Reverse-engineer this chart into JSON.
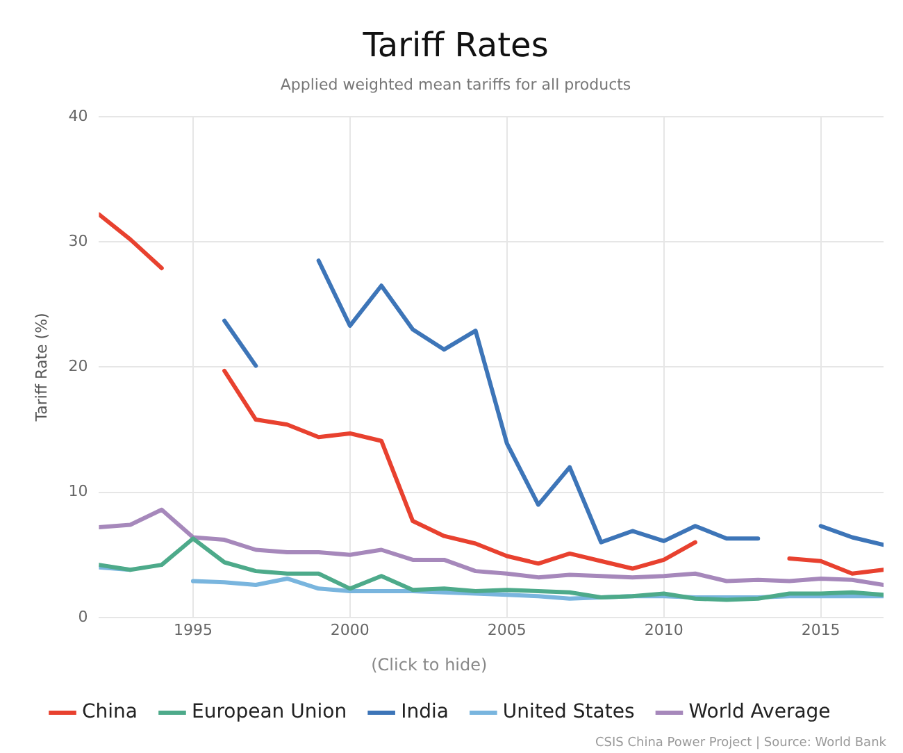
{
  "chart_data": {
    "type": "line",
    "title": "Tariff Rates",
    "subtitle": "Applied weighted mean tariffs for all products",
    "ylabel": "Tariff Rate (%)",
    "legend_title": "(Click to hide)",
    "x": [
      1992,
      1993,
      1994,
      1995,
      1996,
      1997,
      1998,
      1999,
      2000,
      2001,
      2002,
      2003,
      2004,
      2005,
      2006,
      2007,
      2008,
      2009,
      2010,
      2011,
      2012,
      2013,
      2014,
      2015,
      2016,
      2017
    ],
    "series": [
      {
        "name": "China",
        "color": "#e8412f",
        "values": [
          32.2,
          30.2,
          27.9,
          null,
          19.7,
          15.8,
          15.4,
          14.4,
          14.7,
          14.1,
          7.7,
          6.5,
          5.9,
          4.9,
          4.3,
          5.1,
          4.5,
          3.9,
          4.6,
          6.0,
          null,
          null,
          4.7,
          4.5,
          3.5,
          3.8
        ]
      },
      {
        "name": "European Union",
        "color": "#4daa8a",
        "values": [
          4.2,
          3.8,
          4.2,
          6.3,
          4.4,
          3.7,
          3.5,
          3.5,
          2.3,
          3.3,
          2.2,
          2.3,
          2.1,
          2.2,
          2.1,
          2.0,
          1.6,
          1.7,
          1.9,
          1.5,
          1.4,
          1.5,
          1.9,
          1.9,
          2.0,
          1.8
        ]
      },
      {
        "name": "India",
        "color": "#3d75b8",
        "values": [
          null,
          null,
          null,
          null,
          23.7,
          20.1,
          null,
          28.5,
          23.3,
          26.5,
          23.0,
          21.4,
          22.9,
          13.9,
          9.0,
          12.0,
          6.0,
          6.9,
          6.1,
          7.3,
          6.3,
          6.3,
          null,
          7.3,
          6.4,
          5.8
        ]
      },
      {
        "name": "United States",
        "color": "#79b5de",
        "values": [
          4.0,
          3.8,
          null,
          2.9,
          2.8,
          2.6,
          3.1,
          2.3,
          2.1,
          2.1,
          2.1,
          2.0,
          1.9,
          1.8,
          1.7,
          1.5,
          1.6,
          1.7,
          1.7,
          1.6,
          1.6,
          1.6,
          1.7,
          1.7,
          1.7,
          1.7
        ]
      },
      {
        "name": "World Average",
        "color": "#a688bb",
        "values": [
          7.2,
          7.4,
          8.6,
          6.4,
          6.2,
          5.4,
          5.2,
          5.2,
          5.0,
          5.4,
          4.6,
          4.6,
          3.7,
          3.5,
          3.2,
          3.4,
          3.3,
          3.2,
          3.3,
          3.5,
          2.9,
          3.0,
          2.9,
          3.1,
          3.0,
          2.6
        ]
      }
    ],
    "xlim": [
      1992,
      2017
    ],
    "xticks": [
      1995,
      2000,
      2005,
      2010,
      2015
    ],
    "ylim": [
      0,
      40
    ],
    "yticks": [
      0,
      10,
      20,
      30,
      40
    ],
    "grid": true,
    "legend": "bottom left",
    "marker": "none",
    "line_style": "solid",
    "annotations": [
      "CSIS China Power Project | Source: World Bank"
    ]
  }
}
